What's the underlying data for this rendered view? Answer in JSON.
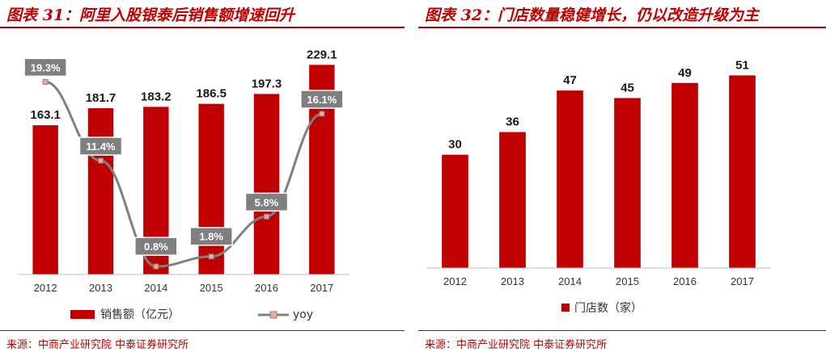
{
  "left_panel": {
    "title": "图表 31：阿里入股银泰后销售额增速回升",
    "source": "来源：中商产业研究院  中泰证券研究所"
  },
  "right_panel": {
    "title": "图表 32：门店数量稳健增长，仍以改造升级为主",
    "source": "来源：中商产业研究院  中泰证券研究所"
  },
  "colors": {
    "accent": "#c00000",
    "bar": "#c00000",
    "line": "#808080",
    "label_box": "#7f7f7f",
    "marker": "#f4a6a6"
  },
  "chart_data": [
    {
      "type": "bar",
      "title": "图表 31：阿里入股银泰后销售额增速回升",
      "categories": [
        "2012",
        "2013",
        "2014",
        "2015",
        "2016",
        "2017"
      ],
      "series": [
        {
          "name": "销售额（亿元）",
          "type": "bar",
          "values": [
            163.1,
            181.7,
            183.2,
            186.5,
            197.3,
            229.1
          ],
          "labels": [
            "163.1",
            "181.7",
            "183.2",
            "186.5",
            "197.3",
            "229.1"
          ]
        },
        {
          "name": "yoy",
          "type": "line",
          "values": [
            19.3,
            11.4,
            0.8,
            1.8,
            5.8,
            16.1
          ],
          "labels": [
            "19.3%",
            "11.4%",
            "0.8%",
            "1.8%",
            "5.8%",
            "16.1%"
          ]
        }
      ],
      "ylim": [
        0,
        240
      ],
      "y2lim": [
        0,
        22
      ],
      "grid": false,
      "legend": "bottom"
    },
    {
      "type": "bar",
      "title": "图表 32：门店数量稳健增长，仍以改造升级为主",
      "categories": [
        "2012",
        "2013",
        "2014",
        "2015",
        "2016",
        "2017"
      ],
      "series": [
        {
          "name": "门店数（家）",
          "type": "bar",
          "values": [
            30,
            36,
            47,
            45,
            49,
            51
          ],
          "labels": [
            "30",
            "36",
            "47",
            "45",
            "49",
            "51"
          ]
        }
      ],
      "ylim": [
        0,
        56
      ],
      "grid": false,
      "legend": "bottom"
    }
  ]
}
